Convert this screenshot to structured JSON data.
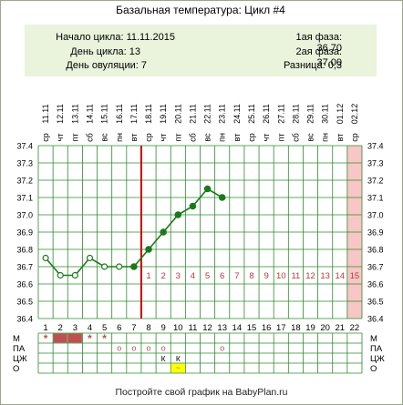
{
  "title": "Базальная температура: Цикл #4",
  "info": {
    "cycle_start": "Начало цикла: 11.11.2015",
    "cycle_day": "День цикла: 13",
    "ovulation_day": "День овуляции: 7",
    "phase1": "1ая фаза: 36.70",
    "phase2": "2ая фаза: 37.00",
    "difference": "Разница: 0,3"
  },
  "footer": "Постройте свой график на BabyPlan.ru",
  "colors": {
    "line": "#1a7a1a",
    "grid": "#2e8b2e",
    "ovulation_line": "#cc0000",
    "info_bg": "#eaf3dc",
    "phase_number": "#b83a3a",
    "highlight_column": "#f8c6c6",
    "menstruation_fill": "#c05050",
    "marker_yellow": "#ffff00"
  },
  "chart_data": {
    "type": "line",
    "dates": [
      "11.11",
      "12.11",
      "13.11",
      "14.11",
      "15.11",
      "16.11",
      "17.11",
      "18.11",
      "19.11",
      "20.11",
      "21.11",
      "22.11",
      "23.11",
      "24.11",
      "25.11",
      "26.11",
      "27.11",
      "28.11",
      "29.11",
      "30.11",
      "01.12",
      "02.12"
    ],
    "weekdays": [
      "ср",
      "чт",
      "пт",
      "сб",
      "вс",
      "пн",
      "вт",
      "ср",
      "чт",
      "пт",
      "сб",
      "вс",
      "пн",
      "вт",
      "ср",
      "чт",
      "пт",
      "сб",
      "вс",
      "пн",
      "вт",
      "ср"
    ],
    "days": [
      "1",
      "2",
      "3",
      "4",
      "5",
      "6",
      "7",
      "8",
      "9",
      "10",
      "11",
      "12",
      "13",
      "14",
      "15",
      "16",
      "17",
      "18",
      "19",
      "20",
      "21",
      "22"
    ],
    "y_ticks": [
      "37.4",
      "37.3",
      "37.2",
      "37.1",
      "37.0",
      "36.9",
      "36.8",
      "36.7",
      "36.6",
      "36.5",
      "36.4"
    ],
    "ylim": [
      36.4,
      37.4
    ],
    "temperatures": [
      36.75,
      36.65,
      36.65,
      36.75,
      36.7,
      36.7,
      36.7,
      36.8,
      36.9,
      37.0,
      37.05,
      37.15,
      37.1
    ],
    "open_markers": [
      1,
      2,
      3,
      4,
      5,
      6
    ],
    "ovulation_day": 7,
    "coverline": 36.7,
    "phase_numbers": [
      "1",
      "2",
      "3",
      "4",
      "5",
      "6",
      "7",
      "8",
      "9",
      "10",
      "11",
      "12",
      "13",
      "14",
      "15"
    ],
    "highlight_day": 22,
    "grid": true,
    "bottom_rows": {
      "labels": [
        "М",
        "ПА",
        "ЦЖ",
        "О"
      ],
      "M_filled": [
        2,
        3
      ],
      "M_star": [
        1,
        4,
        5
      ],
      "PA_circle": [
        6,
        7,
        8,
        9,
        13
      ],
      "CZh_K": [
        9,
        10
      ],
      "O_yellow": [
        10
      ],
      "star_glyph": "*",
      "circle_glyph": "o",
      "k_glyph": "К",
      "yellow_glyph": "~"
    }
  }
}
